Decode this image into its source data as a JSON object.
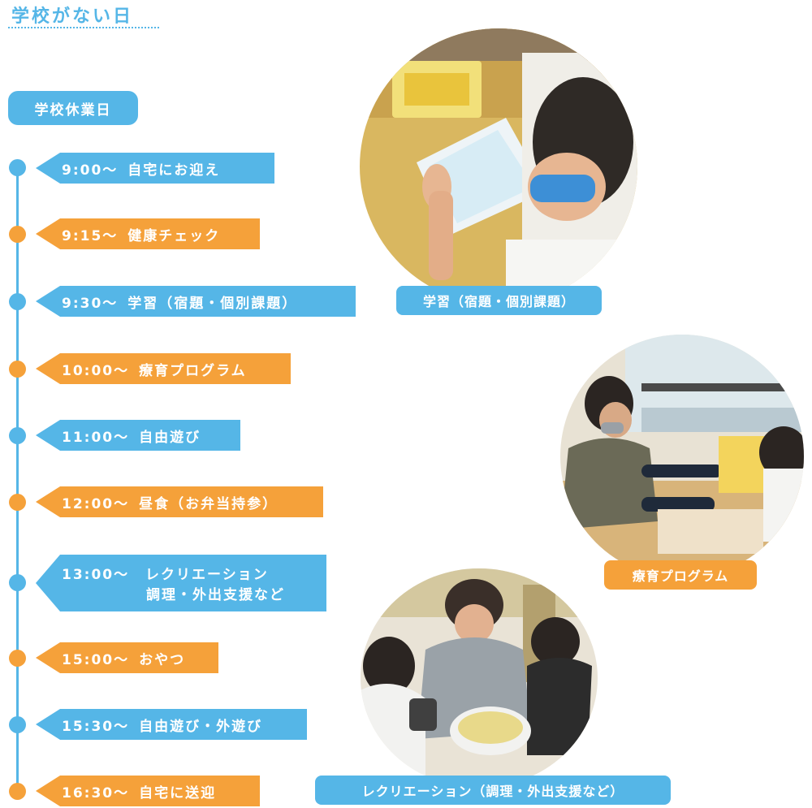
{
  "header": {
    "title": "学校がない日"
  },
  "section": {
    "label": "学校休業日"
  },
  "schedule": [
    {
      "time": "9:00〜",
      "activity": "自宅にお迎え",
      "color": "#55b6e7"
    },
    {
      "time": "9:15〜",
      "activity": "健康チェック",
      "color": "#f5a13a"
    },
    {
      "time": "9:30〜",
      "activity": "学習（宿題・個別課題）",
      "color": "#55b6e7"
    },
    {
      "time": "10:00〜",
      "activity": "療育プログラム",
      "color": "#f5a13a"
    },
    {
      "time": "11:00〜",
      "activity": "自由遊び",
      "color": "#55b6e7"
    },
    {
      "time": "12:00〜",
      "activity": "昼食（お弁当持参）",
      "color": "#f5a13a"
    },
    {
      "time": "13:00〜",
      "activity": "レクリエーション",
      "activity_line2": "調理・外出支援など",
      "color": "#55b6e7"
    },
    {
      "time": "15:00〜",
      "activity": "おやつ",
      "color": "#f5a13a"
    },
    {
      "time": "15:30〜",
      "activity": "自由遊び・外遊び",
      "color": "#55b6e7"
    },
    {
      "time": "16:30〜",
      "activity": "自宅に送迎",
      "color": "#f5a13a"
    }
  ],
  "photos": [
    {
      "caption": "学習（宿題・個別課題）",
      "icon": "photo-study"
    },
    {
      "caption": "療育プログラム",
      "icon": "photo-therapy"
    },
    {
      "caption": "レクリエーション（調理・外出支援など）",
      "icon": "photo-cooking"
    }
  ],
  "colors": {
    "blue": "#55b6e7",
    "orange": "#f5a13a"
  }
}
